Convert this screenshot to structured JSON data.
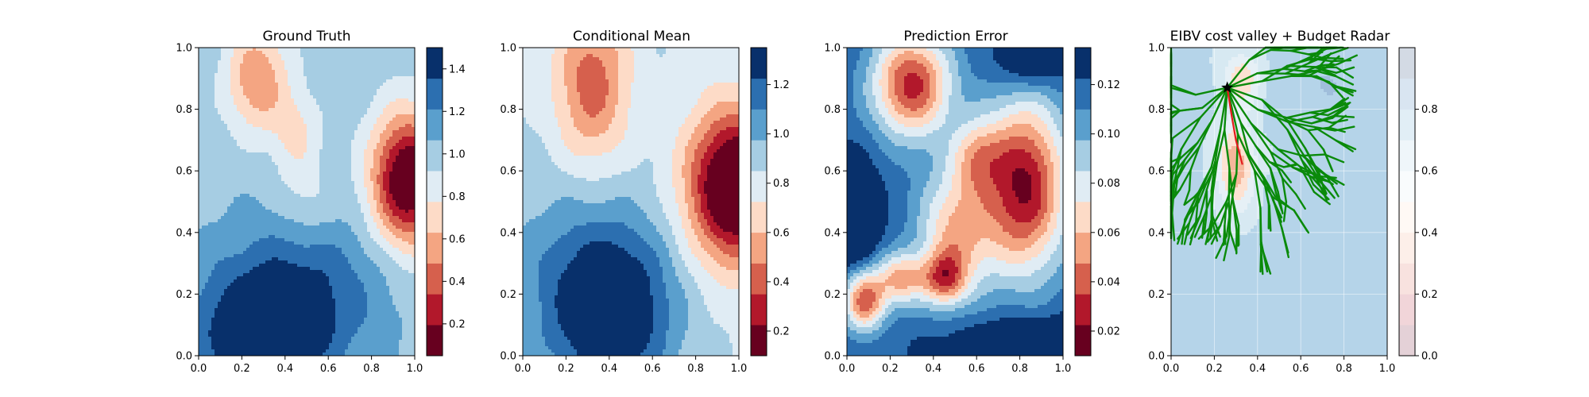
{
  "chart_data": [
    {
      "type": "heatmap",
      "title": "Ground Truth",
      "xlabel": "",
      "ylabel": "",
      "xlim": [
        0,
        1
      ],
      "ylim": [
        0,
        1
      ],
      "x_ticks": [
        "0.0",
        "0.2",
        "0.4",
        "0.6",
        "0.8",
        "1.0"
      ],
      "y_ticks": [
        "0.0",
        "0.2",
        "0.4",
        "0.6",
        "0.8",
        "1.0"
      ],
      "colormap": "RdBu",
      "colorbar": {
        "range": [
          0.05,
          1.5
        ],
        "levels": 10,
        "ticks": [
          {
            "value": 0.2,
            "label": "0.2"
          },
          {
            "value": 0.4,
            "label": "0.4"
          },
          {
            "value": 0.6,
            "label": "0.6"
          },
          {
            "value": 0.8,
            "label": "0.8"
          },
          {
            "value": 1.0,
            "label": "1.0"
          },
          {
            "value": 1.2,
            "label": "1.2"
          },
          {
            "value": 1.4,
            "label": "1.4"
          }
        ]
      },
      "features": [
        {
          "x": 0.27,
          "y": 0.9,
          "sx": 0.1,
          "sy": 0.12,
          "amp": -0.5
        },
        {
          "x": 0.45,
          "y": 0.72,
          "sx": 0.08,
          "sy": 0.1,
          "amp": -0.25
        },
        {
          "x": 0.97,
          "y": 0.57,
          "sx": 0.12,
          "sy": 0.15,
          "amp": -1.05
        },
        {
          "x": 0.3,
          "y": 0.06,
          "sx": 0.2,
          "sy": 0.12,
          "amp": 0.55
        },
        {
          "x": 0.45,
          "y": 0.22,
          "sx": 0.3,
          "sy": 0.17,
          "amp": 0.35
        },
        {
          "x": 0.5,
          "y": 0.5,
          "sx": 0.09,
          "sy": 0.09,
          "amp": -0.15
        }
      ],
      "base": 1.0
    },
    {
      "type": "heatmap",
      "title": "Conditional Mean",
      "xlabel": "",
      "ylabel": "",
      "xlim": [
        0,
        1
      ],
      "ylim": [
        0,
        1
      ],
      "x_ticks": [
        "0.0",
        "0.2",
        "0.4",
        "0.6",
        "0.8",
        "1.0"
      ],
      "y_ticks": [
        "0.0",
        "0.2",
        "0.4",
        "0.6",
        "0.8",
        "1.0"
      ],
      "colormap": "RdBu",
      "colorbar": {
        "range": [
          0.1,
          1.35
        ],
        "levels": 10,
        "ticks": [
          {
            "value": 0.2,
            "label": "0.2"
          },
          {
            "value": 0.4,
            "label": "0.4"
          },
          {
            "value": 0.6,
            "label": "0.6"
          },
          {
            "value": 0.8,
            "label": "0.8"
          },
          {
            "value": 1.0,
            "label": "1.0"
          },
          {
            "value": 1.2,
            "label": "1.2"
          }
        ]
      },
      "features": [
        {
          "x": 0.32,
          "y": 0.88,
          "sx": 0.12,
          "sy": 0.18,
          "amp": -0.45
        },
        {
          "x": 0.98,
          "y": 0.55,
          "sx": 0.15,
          "sy": 0.17,
          "amp": -0.95
        },
        {
          "x": 0.42,
          "y": 0.15,
          "sx": 0.2,
          "sy": 0.2,
          "amp": 0.55
        },
        {
          "x": 0.15,
          "y": 0.25,
          "sx": 0.25,
          "sy": 0.25,
          "amp": 0.15
        }
      ],
      "base": 0.85
    },
    {
      "type": "heatmap",
      "title": "Prediction Error",
      "xlabel": "",
      "ylabel": "",
      "xlim": [
        0,
        1
      ],
      "ylim": [
        0,
        1
      ],
      "x_ticks": [
        "0.0",
        "0.2",
        "0.4",
        "0.6",
        "0.8",
        "1.0"
      ],
      "y_ticks": [
        "0.0",
        "0.2",
        "0.4",
        "0.6",
        "0.8",
        "1.0"
      ],
      "colormap": "RdBu",
      "colorbar": {
        "range": [
          0.01,
          0.135
        ],
        "levels": 10,
        "ticks": [
          {
            "value": 0.02,
            "label": "0.02"
          },
          {
            "value": 0.04,
            "label": "0.04"
          },
          {
            "value": 0.06,
            "label": "0.06"
          },
          {
            "value": 0.08,
            "label": "0.08"
          },
          {
            "value": 0.1,
            "label": "0.10"
          },
          {
            "value": 0.12,
            "label": "0.12"
          }
        ]
      },
      "features": [
        {
          "x": 0.3,
          "y": 0.88,
          "sx": 0.13,
          "sy": 0.12,
          "amp": -0.09
        },
        {
          "x": 0.82,
          "y": 0.55,
          "sx": 0.14,
          "sy": 0.2,
          "amp": -0.1
        },
        {
          "x": 0.5,
          "y": 0.4,
          "sx": 0.12,
          "sy": 0.15,
          "amp": -0.06
        },
        {
          "x": 0.08,
          "y": 0.18,
          "sx": 0.07,
          "sy": 0.07,
          "amp": -0.08
        },
        {
          "x": 0.25,
          "y": 0.25,
          "sx": 0.08,
          "sy": 0.06,
          "amp": -0.06
        },
        {
          "x": 0.45,
          "y": 0.25,
          "sx": 0.07,
          "sy": 0.06,
          "amp": -0.06
        },
        {
          "x": 0.6,
          "y": 0.65,
          "sx": 0.08,
          "sy": 0.08,
          "amp": -0.04
        },
        {
          "x": 0.02,
          "y": 0.45,
          "sx": 0.08,
          "sy": 0.12,
          "amp": 0.04
        },
        {
          "x": 0.85,
          "y": 0.0,
          "sx": 0.25,
          "sy": 0.08,
          "amp": 0.04
        },
        {
          "x": 0.85,
          "y": 0.95,
          "sx": 0.12,
          "sy": 0.06,
          "amp": 0.03
        }
      ],
      "base": 0.12
    },
    {
      "type": "heatmap",
      "title": "EIBV cost valley + Budget Radar",
      "xlabel": "",
      "ylabel": "",
      "xlim": [
        0,
        1
      ],
      "ylim": [
        0,
        1
      ],
      "x_ticks": [
        "0.0",
        "0.2",
        "0.4",
        "0.6",
        "0.8",
        "1.0"
      ],
      "y_ticks": [
        "0.0",
        "0.2",
        "0.4",
        "0.6",
        "0.8",
        "1.0"
      ],
      "colormap": "RdBu",
      "colorbar": {
        "range": [
          0.0,
          1.0
        ],
        "levels": 10,
        "faded": true,
        "ticks": [
          {
            "value": 0.0,
            "label": "0.0"
          },
          {
            "value": 0.2,
            "label": "0.2"
          },
          {
            "value": 0.4,
            "label": "0.4"
          },
          {
            "value": 0.6,
            "label": "0.6"
          },
          {
            "value": 0.8,
            "label": "0.8"
          }
        ]
      },
      "features": [
        {
          "x": 0.3,
          "y": 0.62,
          "sx": 0.06,
          "sy": 0.1,
          "amp": -0.4
        },
        {
          "x": 0.33,
          "y": 0.9,
          "sx": 0.06,
          "sy": 0.06,
          "amp": -0.3
        },
        {
          "x": 0.7,
          "y": 0.9,
          "sx": 0.15,
          "sy": 0.1,
          "amp": 0.08
        }
      ],
      "base": 0.72,
      "start_point": {
        "x": 0.26,
        "y": 0.87
      },
      "red_path": [
        [
          0.26,
          0.87
        ],
        [
          0.28,
          0.78
        ],
        [
          0.3,
          0.7
        ],
        [
          0.33,
          0.62
        ]
      ],
      "branch_seed": 7
    }
  ]
}
